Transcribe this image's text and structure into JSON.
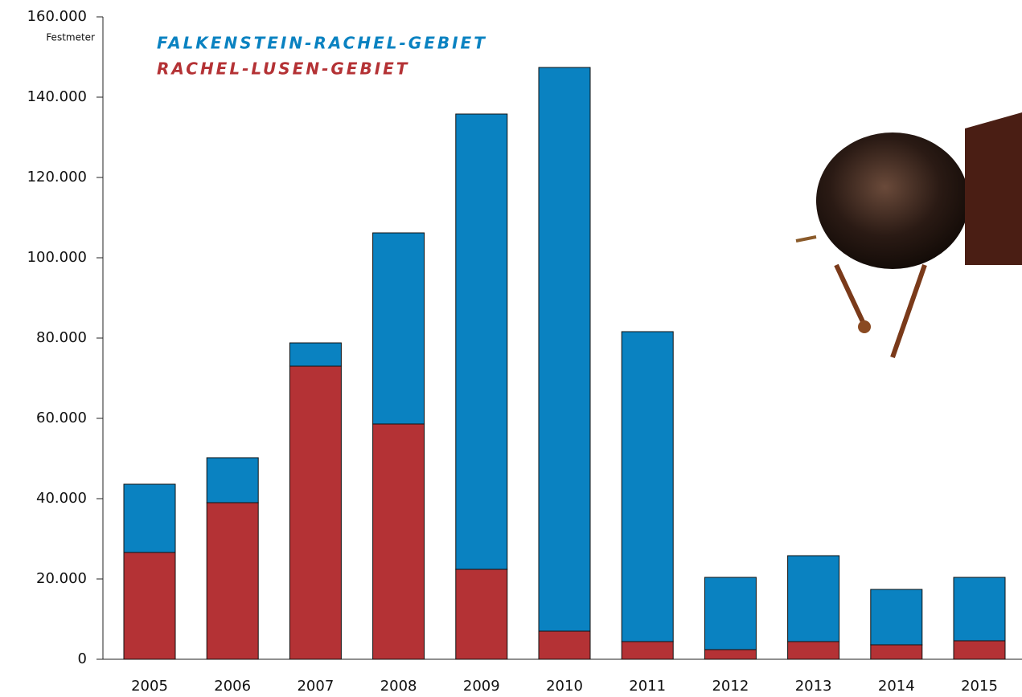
{
  "chart_data": {
    "type": "stacked-bar",
    "y_axis_label": "Festmeter",
    "categories": [
      "2005",
      "2006",
      "2007",
      "2008",
      "2009",
      "2010",
      "2011",
      "2012",
      "2013",
      "2014",
      "2015"
    ],
    "series": [
      {
        "name": "FALKENSTEIN-RACHEL-GEBIET",
        "color": "#0a82c1",
        "values": [
          17000,
          11200,
          5800,
          47600,
          113400,
          140400,
          77200,
          18000,
          21400,
          13800,
          15800
        ]
      },
      {
        "name": "RACHEL-LUSEN-GEBIET",
        "color": "#b43235",
        "values": [
          26600,
          39000,
          73000,
          58600,
          22400,
          7000,
          4400,
          2400,
          4400,
          3600,
          4600
        ]
      }
    ],
    "ylim": [
      0,
      160000
    ],
    "yticks": [
      0,
      {
        "value": 20000,
        "label": "20.000"
      },
      {
        "value": 40000,
        "label": "40.000"
      },
      {
        "value": 60000,
        "label": "60.000"
      },
      {
        "value": 80000,
        "label": "80.000"
      },
      {
        "value": 100000,
        "label": "100.000"
      },
      {
        "value": 120000,
        "label": "120.000"
      },
      {
        "value": 140000,
        "label": "140.000"
      },
      {
        "value": 160000,
        "label": "160.000"
      }
    ],
    "grid": false
  }
}
